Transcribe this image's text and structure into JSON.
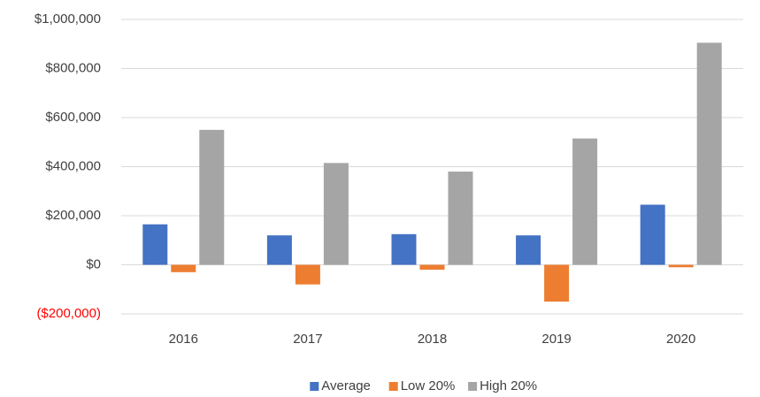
{
  "chart_data": {
    "type": "bar",
    "categories": [
      "2016",
      "2017",
      "2018",
      "2019",
      "2020"
    ],
    "series": [
      {
        "name": "Average",
        "color": "#4472c4",
        "values": [
          165000,
          120000,
          125000,
          120000,
          245000
        ]
      },
      {
        "name": "Low 20%",
        "color": "#ed7d31",
        "values": [
          -30000,
          -80000,
          -20000,
          -150000,
          -10000
        ]
      },
      {
        "name": "High 20%",
        "color": "#a5a5a5",
        "values": [
          550000,
          415000,
          380000,
          515000,
          905000
        ]
      }
    ],
    "ylim": [
      -200000,
      1000000
    ],
    "yticks": [
      {
        "value": -200000,
        "label": "($200,000)"
      },
      {
        "value": 0,
        "label": "$0"
      },
      {
        "value": 200000,
        "label": "$200,000"
      },
      {
        "value": 400000,
        "label": "$400,000"
      },
      {
        "value": 600000,
        "label": "$600,000"
      },
      {
        "value": 800000,
        "label": "$800,000"
      },
      {
        "value": 1000000,
        "label": "$1,000,000"
      }
    ],
    "negative_tick_color": "#ff0000",
    "grid": true,
    "legend": "bottom"
  }
}
